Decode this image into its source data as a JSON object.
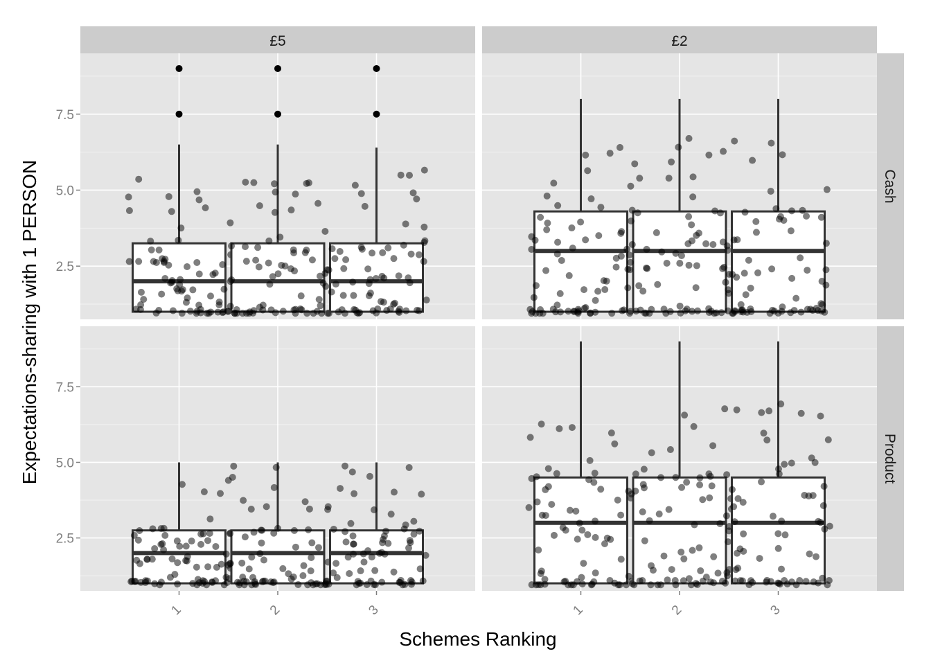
{
  "chart_data": {
    "type": "boxplot",
    "xlabel": "Schemes Ranking",
    "ylabel": "Expectations-sharing with 1 PERSON",
    "categories": [
      "1",
      "2",
      "3"
    ],
    "ylim": [
      0.75,
      9.5
    ],
    "yticks": [
      2.5,
      5.0,
      7.5
    ],
    "ytick_labels": [
      "2.5",
      "5.0",
      "7.5"
    ],
    "grid": true,
    "col_facets": [
      "£5",
      "£2"
    ],
    "row_facets": [
      "Cash",
      "Product"
    ],
    "colors": {
      "panel_bg": "#e5e5e5",
      "strip_bg": "#cccccc",
      "grid": "#ffffff",
      "box_line": "#333333",
      "box_fill": "#ffffff",
      "point": "#000000",
      "point_alpha": 0.5
    },
    "panels": [
      {
        "col": "£5",
        "row": "Cash",
        "boxes": [
          {
            "category": "1",
            "q1": 1.0,
            "median": 2.0,
            "q3": 3.25,
            "whisker_low": 1.0,
            "whisker_high": 6.5,
            "outliers": [
              7.5,
              9.0
            ]
          },
          {
            "category": "2",
            "q1": 1.0,
            "median": 2.0,
            "q3": 3.25,
            "whisker_low": 1.0,
            "whisker_high": 6.5,
            "outliers": [
              7.5,
              9.0
            ]
          },
          {
            "category": "3",
            "q1": 1.0,
            "median": 2.0,
            "q3": 3.25,
            "whisker_low": 1.0,
            "whisker_high": 6.4,
            "outliers": [
              7.5,
              9.0
            ]
          }
        ]
      },
      {
        "col": "£2",
        "row": "Cash",
        "boxes": [
          {
            "category": "1",
            "q1": 1.0,
            "median": 3.0,
            "q3": 4.3,
            "whisker_low": 1.0,
            "whisker_high": 8.0,
            "outliers": []
          },
          {
            "category": "2",
            "q1": 1.0,
            "median": 3.0,
            "q3": 4.3,
            "whisker_low": 1.0,
            "whisker_high": 8.0,
            "outliers": []
          },
          {
            "category": "3",
            "q1": 1.0,
            "median": 3.0,
            "q3": 4.3,
            "whisker_low": 1.0,
            "whisker_high": 8.0,
            "outliers": []
          }
        ]
      },
      {
        "col": "£5",
        "row": "Product",
        "boxes": [
          {
            "category": "1",
            "q1": 1.0,
            "median": 2.0,
            "q3": 2.75,
            "whisker_low": 1.0,
            "whisker_high": 5.0,
            "outliers": []
          },
          {
            "category": "2",
            "q1": 1.0,
            "median": 2.0,
            "q3": 2.75,
            "whisker_low": 1.0,
            "whisker_high": 5.0,
            "outliers": []
          },
          {
            "category": "3",
            "q1": 1.0,
            "median": 2.0,
            "q3": 2.75,
            "whisker_low": 1.0,
            "whisker_high": 5.0,
            "outliers": []
          }
        ]
      },
      {
        "col": "£2",
        "row": "Product",
        "boxes": [
          {
            "category": "1",
            "q1": 1.0,
            "median": 3.0,
            "q3": 4.5,
            "whisker_low": 1.0,
            "whisker_high": 9.0,
            "outliers": []
          },
          {
            "category": "2",
            "q1": 1.0,
            "median": 3.0,
            "q3": 4.5,
            "whisker_low": 1.0,
            "whisker_high": 9.0,
            "outliers": []
          },
          {
            "category": "3",
            "q1": 1.0,
            "median": 3.0,
            "q3": 4.5,
            "whisker_low": 1.0,
            "whisker_high": 9.0,
            "outliers": []
          }
        ]
      }
    ]
  }
}
